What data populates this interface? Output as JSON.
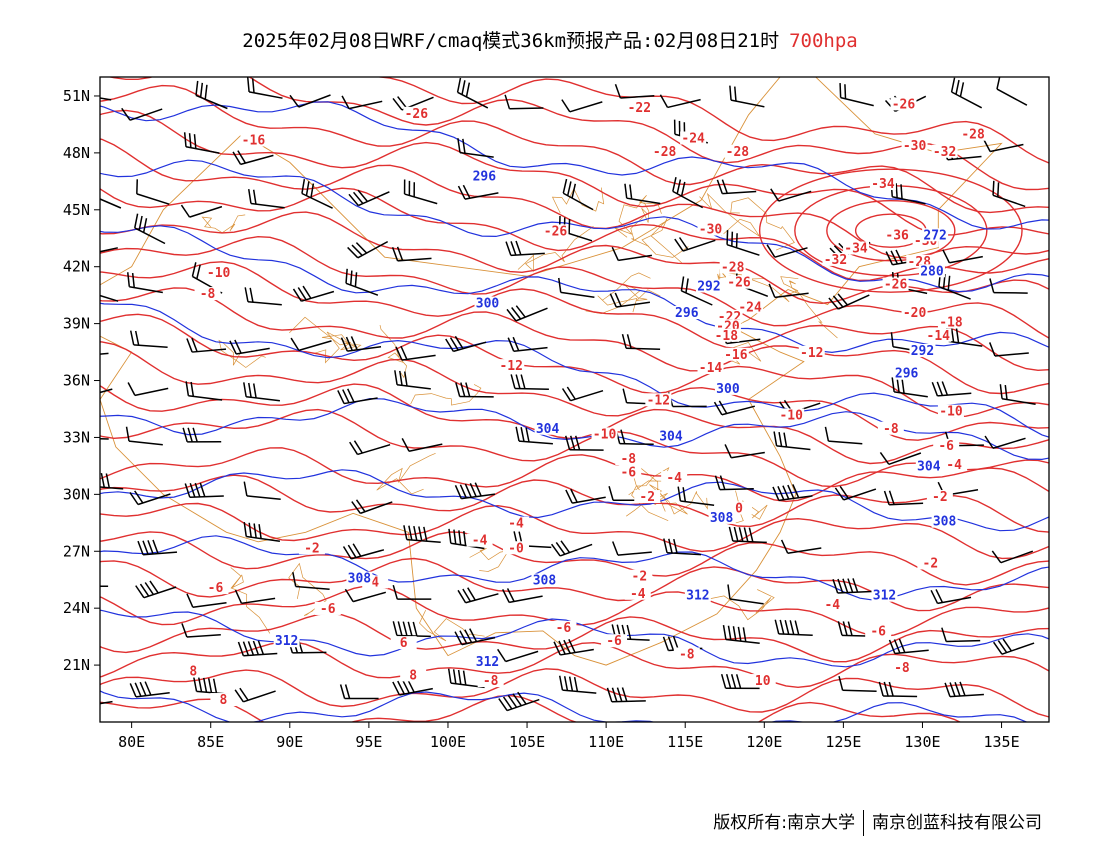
{
  "title": {
    "text": "2025年02月08日WRF/cmaq模式36km预报产品:02月08日21时",
    "level": "700hpa"
  },
  "footer": {
    "copyright": "版权所有:南京大学",
    "company": "南京创蓝科技有限公司"
  },
  "colors": {
    "temperature": "#e03030",
    "height": "#2233dd",
    "border": "#d9923a",
    "wind": "#000000"
  },
  "map": {
    "lon_range": [
      78,
      138
    ],
    "lat_range": [
      18,
      52
    ],
    "lon_ticks": [
      {
        "value": 80,
        "label": "80E"
      },
      {
        "value": 85,
        "label": "85E"
      },
      {
        "value": 90,
        "label": "90E"
      },
      {
        "value": 95,
        "label": "95E"
      },
      {
        "value": 100,
        "label": "100E"
      },
      {
        "value": 105,
        "label": "105E"
      },
      {
        "value": 110,
        "label": "110E"
      },
      {
        "value": 115,
        "label": "115E"
      },
      {
        "value": 120,
        "label": "120E"
      },
      {
        "value": 125,
        "label": "125E"
      },
      {
        "value": 130,
        "label": "130E"
      },
      {
        "value": 135,
        "label": "135E"
      }
    ],
    "lat_ticks": [
      {
        "value": 21,
        "label": "21N"
      },
      {
        "value": 24,
        "label": "24N"
      },
      {
        "value": 27,
        "label": "27N"
      },
      {
        "value": 30,
        "label": "30N"
      },
      {
        "value": 33,
        "label": "33N"
      },
      {
        "value": 36,
        "label": "36N"
      },
      {
        "value": 39,
        "label": "39N"
      },
      {
        "value": 42,
        "label": "42N"
      },
      {
        "value": 45,
        "label": "45N"
      },
      {
        "value": 48,
        "label": "48N"
      },
      {
        "value": 51,
        "label": "51N"
      }
    ],
    "temperature_labels": [
      {
        "lon": 98.0,
        "lat": 49.9,
        "text": "-26"
      },
      {
        "lon": 87.7,
        "lat": 48.5,
        "text": "-16"
      },
      {
        "lon": 112.1,
        "lat": 50.2,
        "text": "-22"
      },
      {
        "lon": 115.5,
        "lat": 48.6,
        "text": "-24"
      },
      {
        "lon": 113.7,
        "lat": 47.9,
        "text": "-28"
      },
      {
        "lon": 118.3,
        "lat": 47.9,
        "text": "-28"
      },
      {
        "lon": 128.8,
        "lat": 50.4,
        "text": "-26"
      },
      {
        "lon": 133.2,
        "lat": 48.8,
        "text": "-28"
      },
      {
        "lon": 129.5,
        "lat": 48.2,
        "text": "-30"
      },
      {
        "lon": 131.4,
        "lat": 47.9,
        "text": "-32"
      },
      {
        "lon": 127.5,
        "lat": 46.2,
        "text": "-34"
      },
      {
        "lon": 106.8,
        "lat": 43.7,
        "text": "-26"
      },
      {
        "lon": 116.6,
        "lat": 43.8,
        "text": "-30"
      },
      {
        "lon": 128.4,
        "lat": 43.5,
        "text": "-36"
      },
      {
        "lon": 125.8,
        "lat": 42.8,
        "text": "-34"
      },
      {
        "lon": 124.5,
        "lat": 42.2,
        "text": "-32"
      },
      {
        "lon": 118.0,
        "lat": 41.8,
        "text": "-28"
      },
      {
        "lon": 118.4,
        "lat": 41.0,
        "text": "-26"
      },
      {
        "lon": 130.2,
        "lat": 43.2,
        "text": "-30"
      },
      {
        "lon": 129.8,
        "lat": 42.1,
        "text": "-28"
      },
      {
        "lon": 128.3,
        "lat": 40.9,
        "text": "-26"
      },
      {
        "lon": 119.1,
        "lat": 39.7,
        "text": "-24"
      },
      {
        "lon": 117.8,
        "lat": 39.2,
        "text": "-22"
      },
      {
        "lon": 117.7,
        "lat": 38.7,
        "text": "-20"
      },
      {
        "lon": 117.6,
        "lat": 38.2,
        "text": "-18"
      },
      {
        "lon": 118.2,
        "lat": 37.2,
        "text": "-16"
      },
      {
        "lon": 116.6,
        "lat": 36.5,
        "text": "-14"
      },
      {
        "lon": 113.3,
        "lat": 34.8,
        "text": "-12"
      },
      {
        "lon": 104.0,
        "lat": 36.6,
        "text": "-12"
      },
      {
        "lon": 123.0,
        "lat": 37.3,
        "text": "-12"
      },
      {
        "lon": 129.5,
        "lat": 39.4,
        "text": "-20"
      },
      {
        "lon": 131.0,
        "lat": 38.2,
        "text": "-14"
      },
      {
        "lon": 131.8,
        "lat": 38.9,
        "text": "-18"
      },
      {
        "lon": 131.8,
        "lat": 34.2,
        "text": "-10"
      },
      {
        "lon": 121.7,
        "lat": 34.0,
        "text": "-10"
      },
      {
        "lon": 109.9,
        "lat": 33.0,
        "text": "-10"
      },
      {
        "lon": 128.0,
        "lat": 33.3,
        "text": "-8"
      },
      {
        "lon": 131.5,
        "lat": 32.4,
        "text": "-6"
      },
      {
        "lon": 111.4,
        "lat": 31.7,
        "text": "-8"
      },
      {
        "lon": 111.4,
        "lat": 31.0,
        "text": "-6"
      },
      {
        "lon": 114.3,
        "lat": 30.7,
        "text": "-4"
      },
      {
        "lon": 132.0,
        "lat": 31.4,
        "text": "-4"
      },
      {
        "lon": 112.6,
        "lat": 29.7,
        "text": "-2"
      },
      {
        "lon": 131.1,
        "lat": 29.7,
        "text": "-2"
      },
      {
        "lon": 118.4,
        "lat": 29.1,
        "text": "0"
      },
      {
        "lon": 104.3,
        "lat": 28.3,
        "text": "-4"
      },
      {
        "lon": 102.0,
        "lat": 27.4,
        "text": "-4"
      },
      {
        "lon": 104.3,
        "lat": 27.0,
        "text": "-0"
      },
      {
        "lon": 91.4,
        "lat": 27.0,
        "text": "-2"
      },
      {
        "lon": 112.1,
        "lat": 25.5,
        "text": "-2"
      },
      {
        "lon": 130.5,
        "lat": 26.2,
        "text": "-2"
      },
      {
        "lon": 112.0,
        "lat": 24.6,
        "text": "-4"
      },
      {
        "lon": 124.3,
        "lat": 24.0,
        "text": "-4"
      },
      {
        "lon": 95.4,
        "lat": 25.2,
        "text": "4"
      },
      {
        "lon": 85.3,
        "lat": 24.9,
        "text": "-6"
      },
      {
        "lon": 107.3,
        "lat": 22.8,
        "text": "-6"
      },
      {
        "lon": 110.5,
        "lat": 22.1,
        "text": "-6"
      },
      {
        "lon": 127.2,
        "lat": 22.6,
        "text": "-6"
      },
      {
        "lon": 92.4,
        "lat": 23.8,
        "text": "-6"
      },
      {
        "lon": 97.2,
        "lat": 22.0,
        "text": "6"
      },
      {
        "lon": 83.9,
        "lat": 20.5,
        "text": "8"
      },
      {
        "lon": 97.8,
        "lat": 20.3,
        "text": "8"
      },
      {
        "lon": 102.7,
        "lat": 20.0,
        "text": "-8"
      },
      {
        "lon": 115.1,
        "lat": 21.4,
        "text": "-8"
      },
      {
        "lon": 128.7,
        "lat": 20.7,
        "text": "-8"
      },
      {
        "lon": 119.9,
        "lat": 20.0,
        "text": "10"
      },
      {
        "lon": 85.8,
        "lat": 19.0,
        "text": "8"
      },
      {
        "lon": 85.5,
        "lat": 41.5,
        "text": "-10"
      },
      {
        "lon": 84.8,
        "lat": 40.4,
        "text": "-8"
      }
    ],
    "height_labels": [
      {
        "lon": 102.3,
        "lat": 46.6,
        "text": "296"
      },
      {
        "lon": 130.8,
        "lat": 43.5,
        "text": "272"
      },
      {
        "lon": 130.6,
        "lat": 41.6,
        "text": "280"
      },
      {
        "lon": 116.5,
        "lat": 40.8,
        "text": "292"
      },
      {
        "lon": 115.1,
        "lat": 39.4,
        "text": "296"
      },
      {
        "lon": 102.5,
        "lat": 39.9,
        "text": "300"
      },
      {
        "lon": 130.0,
        "lat": 37.4,
        "text": "292"
      },
      {
        "lon": 129.0,
        "lat": 36.2,
        "text": "296"
      },
      {
        "lon": 117.7,
        "lat": 35.4,
        "text": "300"
      },
      {
        "lon": 106.3,
        "lat": 33.3,
        "text": "304"
      },
      {
        "lon": 114.1,
        "lat": 32.9,
        "text": "304"
      },
      {
        "lon": 130.4,
        "lat": 31.3,
        "text": "304"
      },
      {
        "lon": 117.3,
        "lat": 28.6,
        "text": "308"
      },
      {
        "lon": 131.4,
        "lat": 28.4,
        "text": "308"
      },
      {
        "lon": 94.4,
        "lat": 25.4,
        "text": "308"
      },
      {
        "lon": 106.1,
        "lat": 25.3,
        "text": "308"
      },
      {
        "lon": 115.8,
        "lat": 24.5,
        "text": "312"
      },
      {
        "lon": 127.6,
        "lat": 24.5,
        "text": "312"
      },
      {
        "lon": 89.8,
        "lat": 22.1,
        "text": "312"
      },
      {
        "lon": 102.5,
        "lat": 21.0,
        "text": "312"
      }
    ]
  }
}
